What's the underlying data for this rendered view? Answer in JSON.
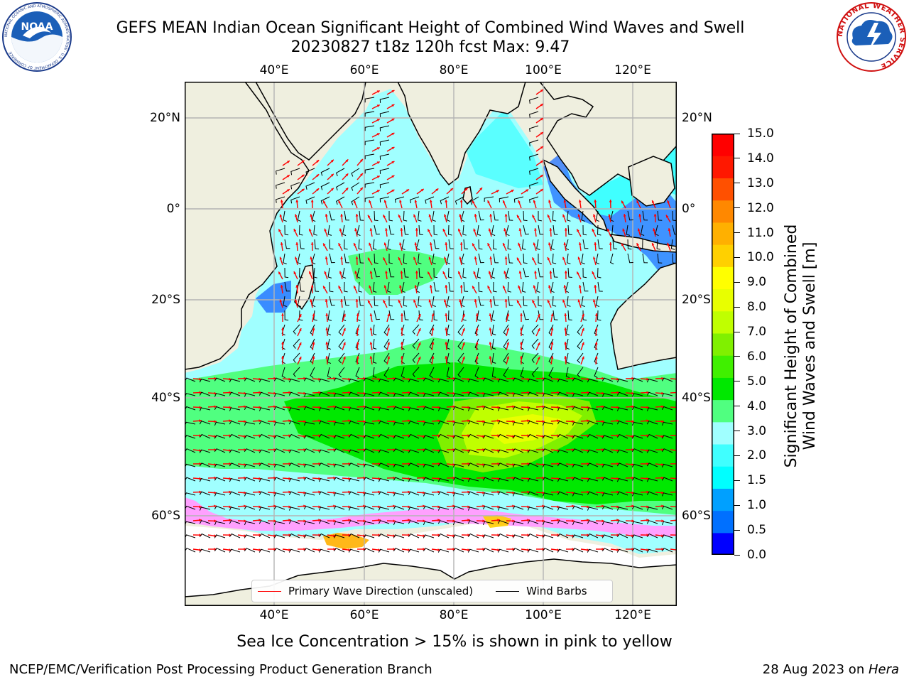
{
  "header": {
    "title_line1": "GEFS MEAN Indian Ocean Significant Height of Combined Wind Waves and Swell",
    "title_line2": "20230827 t18z 120h fcst   Max: 9.47"
  },
  "logos": {
    "noaa_text": "NOAA",
    "noaa_ring_text": "NATIONAL OCEANIC AND ATMOSPHERIC ADMINISTRATION · U.S. DEPARTMENT OF COMMERCE",
    "nws_ring_text": "NATIONAL WEATHER SERVICE"
  },
  "map": {
    "lon_ticks": [
      "40°E",
      "60°E",
      "80°E",
      "100°E",
      "120°E"
    ],
    "lat_ticks_left": [
      "20°N",
      "0°",
      "20°S",
      "40°S",
      "60°S"
    ],
    "lat_ticks_right": [
      "20°N",
      "0°",
      "20°S",
      "40°S",
      "60°S"
    ],
    "colors": {
      "land": "#efefdf",
      "grid": "#b4b4b4",
      "ice": "#ffffff",
      "wave_arrow": "#ff0000",
      "wind_barb": "#000000"
    }
  },
  "legend": {
    "wave_label": "Primary Wave Direction (unscaled)",
    "wind_label": "Wind Barbs",
    "wave_color": "#ff0000",
    "wind_color": "#000000"
  },
  "colorbar": {
    "label_line1": "Significant Height of Combined",
    "label_line2": "Wind Waves and Swell [m]",
    "ticks": [
      "0.0",
      "0.5",
      "1.0",
      "1.5",
      "2.0",
      "3.0",
      "4.0",
      "5.0",
      "6.0",
      "7.0",
      "8.0",
      "9.0",
      "10.0",
      "11.0",
      "12.0",
      "13.0",
      "14.0",
      "15.0"
    ],
    "colors": [
      "#0000ff",
      "#0070ff",
      "#00a0ff",
      "#00ffff",
      "#40ffff",
      "#a0ffff",
      "#50ff80",
      "#00e800",
      "#40f000",
      "#80f000",
      "#c0ff00",
      "#e8ff00",
      "#ffff00",
      "#ffd000",
      "#ffb000",
      "#ff8800",
      "#ff5000",
      "#ff1800",
      "#ff0000"
    ]
  },
  "caption": "Sea Ice Concentration > 15% is shown in pink to yellow",
  "footer": {
    "left": "NCEP/EMC/Verification Post Processing Product Generation Branch",
    "date": "28 Aug 2023 on ",
    "host": "Hera"
  }
}
